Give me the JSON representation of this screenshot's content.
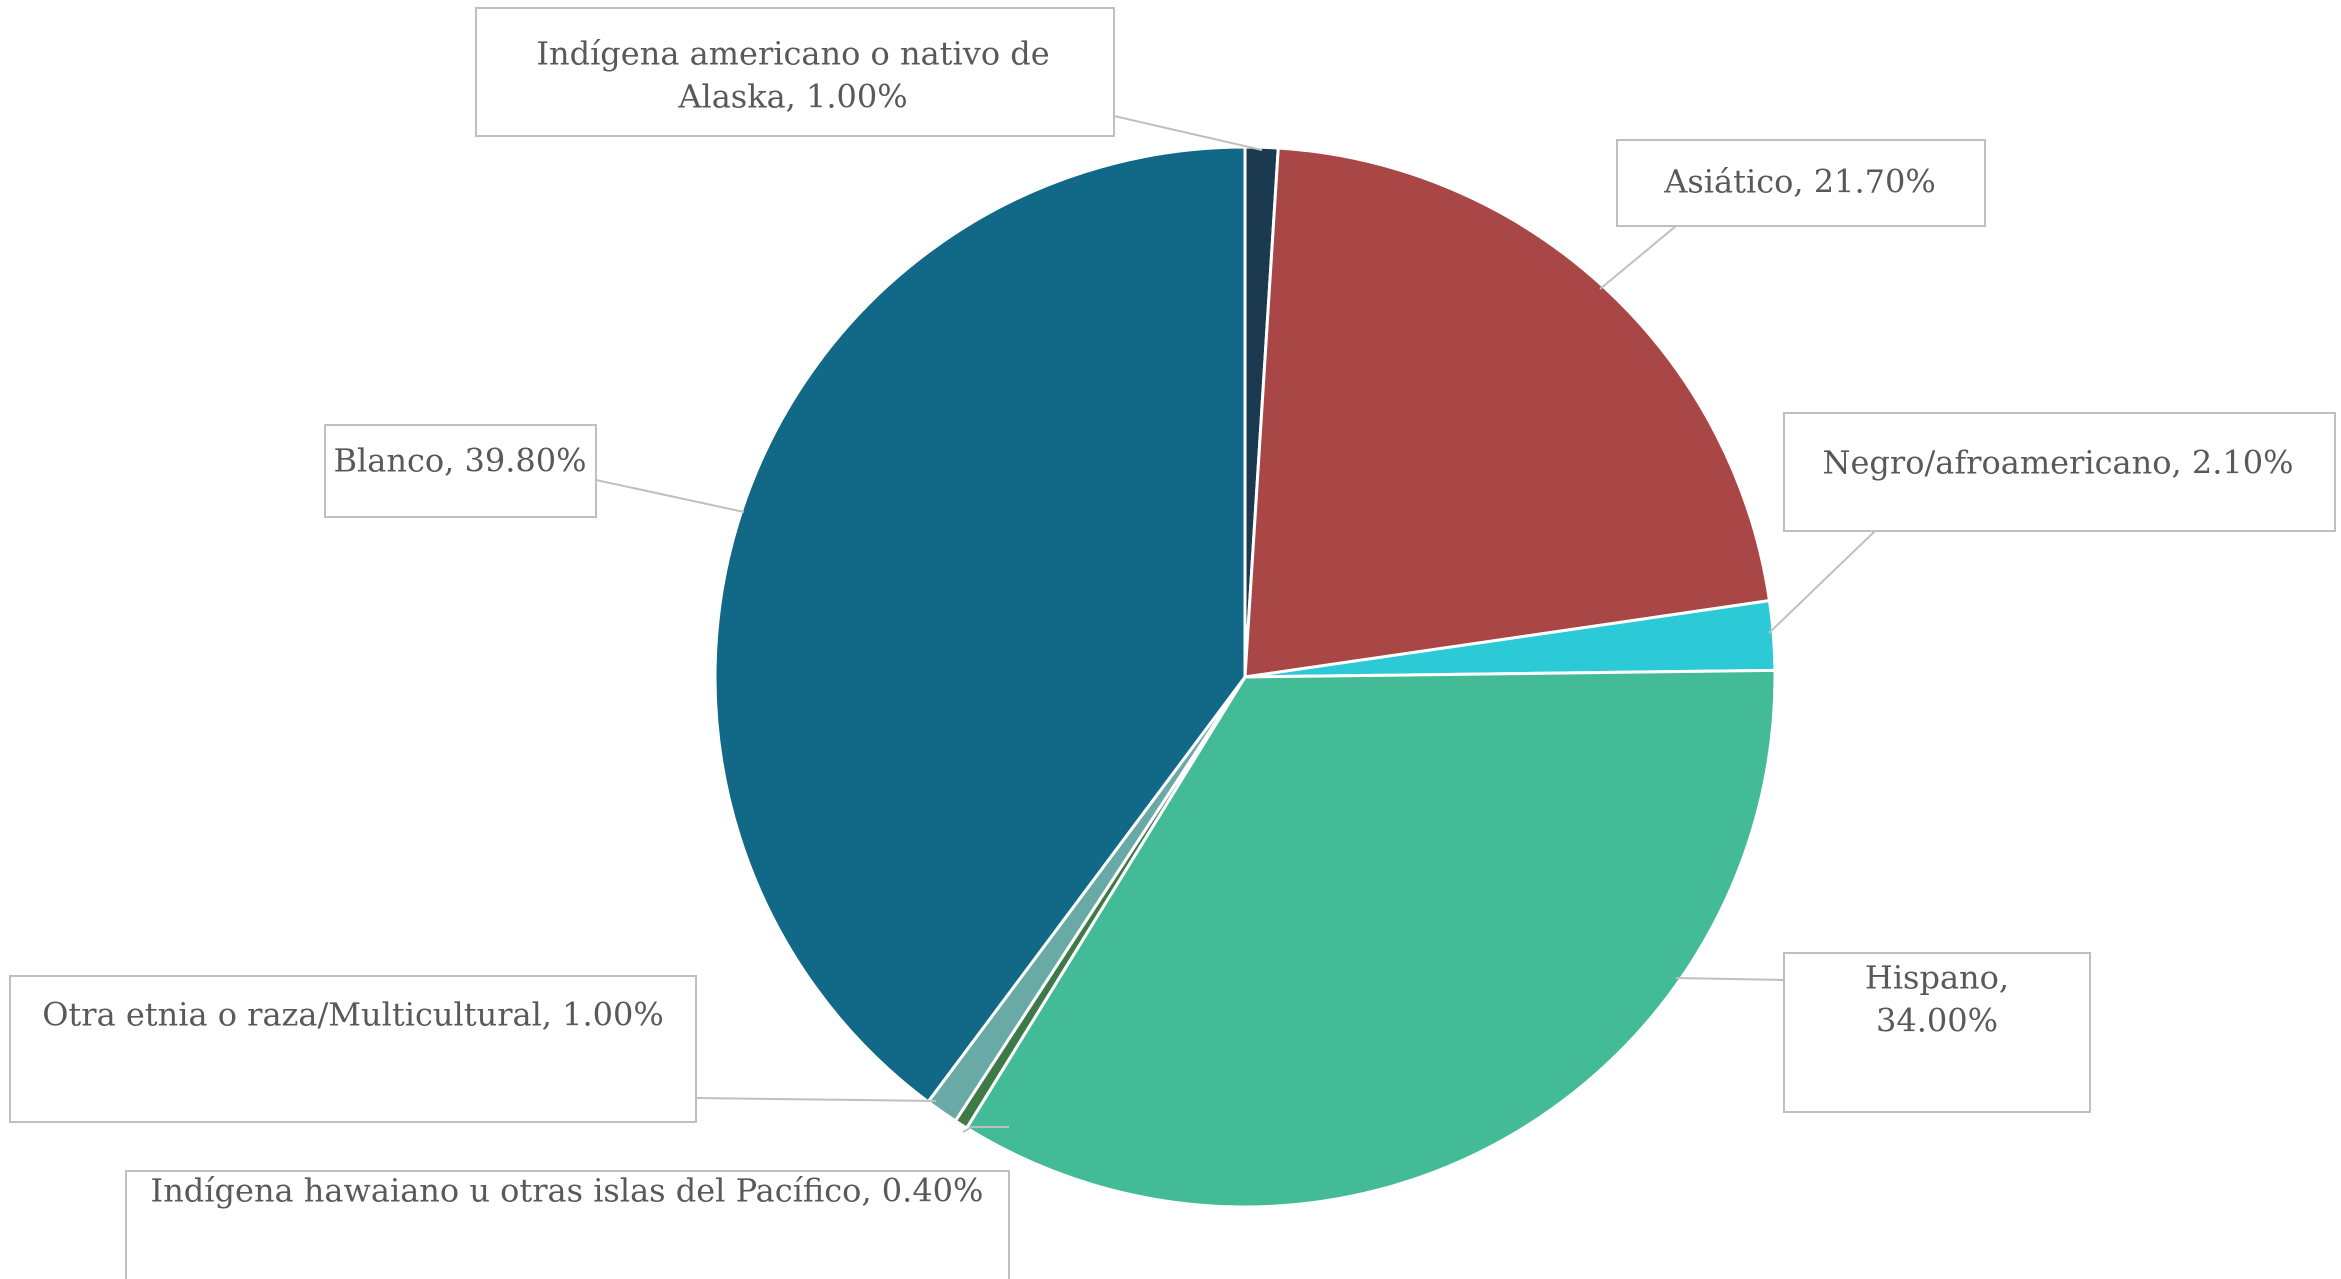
{
  "chart_data": {
    "type": "pie",
    "title": "",
    "start_angle_deg": 0,
    "direction": "clockwise",
    "slices": [
      {
        "label": "Indígena americano o nativo de Alaska",
        "value": 1.0,
        "display": "Indígena americano o nativo de Alaska, 1.00%",
        "color": "#1c3a4f"
      },
      {
        "label": "Asiático",
        "value": 21.7,
        "display": "Asiático, 21.70%",
        "color": "#a84745"
      },
      {
        "label": "Negro/afroamericano",
        "value": 2.1,
        "display": "Negro/afroamericano, 2.10%",
        "color": "#2ccad6"
      },
      {
        "label": "Hispano",
        "value": 34.0,
        "display": "Hispano, 34.00%",
        "color": "#44bb97"
      },
      {
        "label": "Indígena hawaiano u otras islas del Pacífico",
        "value": 0.4,
        "display": "Indígena hawaiano u otras islas del Pacífico, 0.40%",
        "color": "#3d7a45"
      },
      {
        "label": "Otra etnia o raza/Multicultural",
        "value": 1.0,
        "display": "Otra etnia o raza/Multicultural, 1.00%",
        "color": "#6aaaa6"
      },
      {
        "label": "Blanco",
        "value": 39.8,
        "display": "Blanco, 39.80%",
        "color": "#116887"
      }
    ]
  }
}
